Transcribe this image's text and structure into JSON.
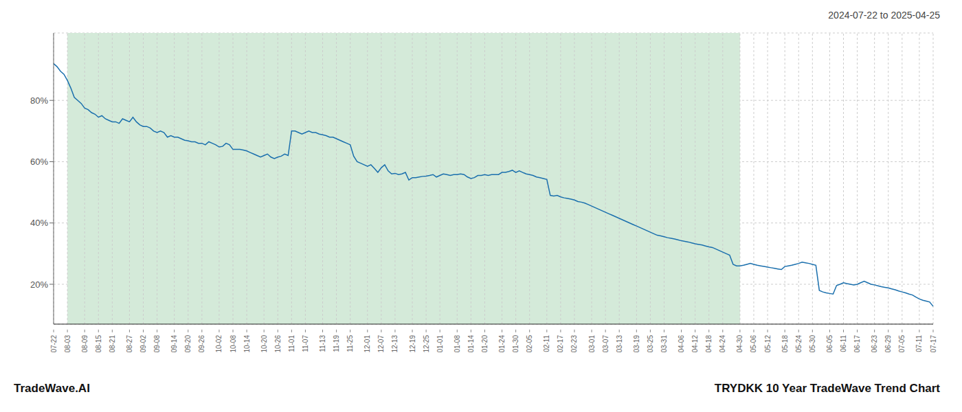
{
  "chart_data": {
    "type": "line",
    "title": "TRYDKK 10 Year TradeWave Trend Chart",
    "subtitle": "2024-07-22 to 2025-04-25",
    "annotations": [
      "TradeWave.AI"
    ],
    "color": "#1a6fad",
    "grid": true,
    "ylim": [
      0.07,
      1.02
    ],
    "yticks": [
      {
        "value": 0.2,
        "label": "20%"
      },
      {
        "value": 0.4,
        "label": "40%"
      },
      {
        "value": 0.6,
        "label": "60%"
      },
      {
        "value": 0.8,
        "label": "80%"
      }
    ],
    "shaded_range": {
      "from": "08-03",
      "to": "04-30",
      "color": "#d4ead9"
    },
    "categories": [
      "07-22",
      null,
      null,
      null,
      "08-03",
      null,
      null,
      null,
      null,
      "08-09",
      null,
      null,
      null,
      "08-15",
      null,
      null,
      null,
      "08-21",
      null,
      null,
      null,
      null,
      "08-27",
      null,
      null,
      null,
      "09-02",
      null,
      null,
      null,
      "09-08",
      null,
      null,
      null,
      null,
      "09-14",
      null,
      null,
      null,
      "09-20",
      null,
      null,
      null,
      "09-26",
      null,
      null,
      null,
      null,
      "10-02",
      null,
      null,
      null,
      "10-08",
      null,
      null,
      null,
      "10-14",
      null,
      null,
      null,
      null,
      "10-20",
      null,
      null,
      null,
      "10-26",
      null,
      null,
      null,
      "11-01",
      null,
      null,
      null,
      "11-07",
      null,
      null,
      null,
      null,
      "11-13",
      null,
      null,
      null,
      "11-19",
      null,
      null,
      null,
      "11-25",
      null,
      null,
      null,
      null,
      "12-01",
      null,
      null,
      null,
      "12-07",
      null,
      null,
      null,
      "12-13",
      null,
      null,
      null,
      null,
      "12-19",
      null,
      null,
      null,
      "12-25",
      null,
      null,
      null,
      "01-01",
      null,
      null,
      null,
      null,
      "01-08",
      null,
      null,
      null,
      "01-14",
      null,
      null,
      null,
      "01-20",
      null,
      null,
      null,
      null,
      "01-24",
      null,
      null,
      null,
      "01-30",
      null,
      null,
      null,
      "02-05",
      null,
      null,
      null,
      null,
      "02-11",
      null,
      null,
      null,
      "02-17",
      null,
      null,
      null,
      "02-23",
      null,
      null,
      null,
      null,
      "03-01",
      null,
      null,
      null,
      "03-07",
      null,
      null,
      null,
      "03-13",
      null,
      null,
      null,
      null,
      "03-19",
      null,
      null,
      null,
      "03-25",
      null,
      null,
      null,
      "03-31",
      null,
      null,
      null,
      null,
      "04-06",
      null,
      null,
      null,
      "04-12",
      null,
      null,
      null,
      "04-18",
      null,
      null,
      null,
      "04-24",
      null,
      null,
      null,
      null,
      "04-30",
      null,
      null,
      null,
      "05-06",
      null,
      null,
      null,
      "05-12",
      null,
      null,
      null,
      null,
      "05-18",
      null,
      null,
      null,
      "05-24",
      null,
      null,
      null,
      "05-30",
      null,
      null,
      null,
      null,
      "06-05",
      null,
      null,
      null,
      "06-11",
      null,
      null,
      null,
      "06-17",
      null,
      null,
      null,
      null,
      "06-23",
      null,
      null,
      null,
      "06-29",
      null,
      null,
      null,
      "07-05",
      null,
      null,
      null,
      null,
      "07-11",
      null,
      null,
      null,
      "07-17"
    ],
    "values": [
      0.92,
      0.91,
      0.895,
      0.885,
      0.865,
      0.84,
      0.81,
      0.8,
      0.79,
      0.775,
      0.77,
      0.76,
      0.755,
      0.745,
      0.75,
      0.74,
      0.735,
      0.73,
      0.73,
      0.725,
      0.74,
      0.735,
      0.73,
      0.745,
      0.73,
      0.72,
      0.715,
      0.715,
      0.71,
      0.7,
      0.695,
      0.7,
      0.695,
      0.68,
      0.685,
      0.68,
      0.68,
      0.675,
      0.67,
      0.668,
      0.665,
      0.665,
      0.66,
      0.66,
      0.655,
      0.665,
      0.66,
      0.655,
      0.648,
      0.65,
      0.66,
      0.655,
      0.64,
      0.64,
      0.64,
      0.638,
      0.635,
      0.63,
      0.625,
      0.62,
      0.615,
      0.62,
      0.625,
      0.615,
      0.61,
      0.615,
      0.618,
      0.625,
      0.62,
      0.7,
      0.7,
      0.695,
      0.69,
      0.695,
      0.7,
      0.695,
      0.695,
      0.69,
      0.688,
      0.685,
      0.68,
      0.68,
      0.675,
      0.67,
      0.665,
      0.66,
      0.655,
      0.618,
      0.6,
      0.595,
      0.59,
      0.585,
      0.59,
      0.578,
      0.565,
      0.58,
      0.59,
      0.57,
      0.56,
      0.562,
      0.558,
      0.56,
      0.565,
      0.54,
      0.548,
      0.548,
      0.55,
      0.552,
      0.553,
      0.555,
      0.558,
      0.55,
      0.555,
      0.56,
      0.558,
      0.555,
      0.558,
      0.558,
      0.56,
      0.558,
      0.55,
      0.545,
      0.548,
      0.555,
      0.555,
      0.558,
      0.555,
      0.558,
      0.558,
      0.558,
      0.565,
      0.565,
      0.568,
      0.572,
      0.565,
      0.57,
      0.565,
      0.56,
      0.558,
      0.555,
      0.55,
      0.548,
      0.545,
      0.542,
      0.49,
      0.488,
      0.49,
      0.485,
      0.482,
      0.48,
      0.478,
      0.475,
      0.47,
      0.468,
      0.465,
      0.46,
      0.455,
      0.45,
      0.445,
      0.44,
      0.435,
      0.43,
      0.425,
      0.42,
      0.415,
      0.41,
      0.405,
      0.4,
      0.395,
      0.39,
      0.385,
      0.38,
      0.375,
      0.37,
      0.365,
      0.36,
      0.358,
      0.355,
      0.352,
      0.35,
      0.348,
      0.345,
      0.342,
      0.34,
      0.338,
      0.335,
      0.332,
      0.33,
      0.328,
      0.325,
      0.322,
      0.32,
      0.315,
      0.31,
      0.305,
      0.3,
      0.295,
      0.265,
      0.26,
      0.26,
      0.262,
      0.265,
      0.268,
      0.265,
      0.262,
      0.26,
      0.258,
      0.256,
      0.254,
      0.252,
      0.25,
      0.248,
      0.258,
      0.26,
      0.262,
      0.265,
      0.268,
      0.272,
      0.27,
      0.268,
      0.265,
      0.262,
      0.18,
      0.175,
      0.172,
      0.17,
      0.168,
      0.196,
      0.2,
      0.205,
      0.202,
      0.2,
      0.198,
      0.2,
      0.205,
      0.21,
      0.205,
      0.2,
      0.198,
      0.195,
      0.192,
      0.19,
      0.188,
      0.185,
      0.182,
      0.178,
      0.175,
      0.172,
      0.168,
      0.165,
      0.158,
      0.152,
      0.148,
      0.145,
      0.142,
      0.128
    ]
  }
}
